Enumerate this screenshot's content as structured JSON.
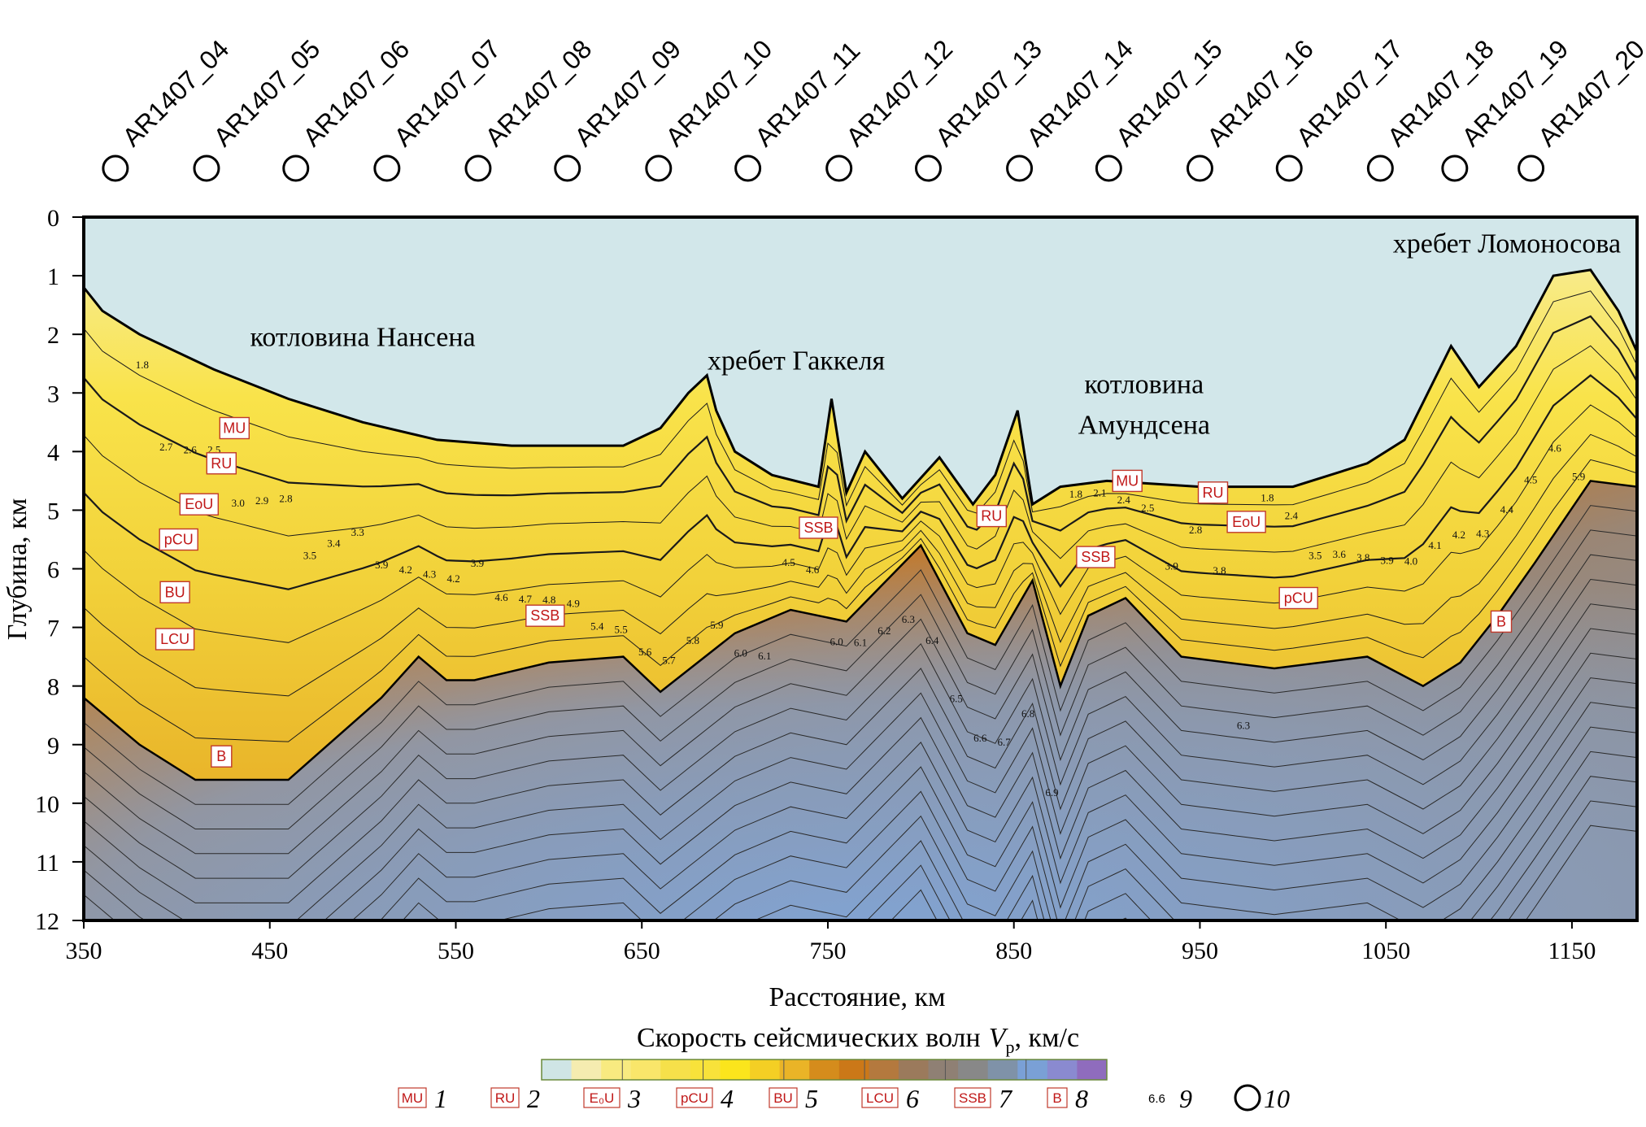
{
  "chart_data": {
    "type": "area",
    "title": "",
    "xlabel": "Расстояние, км",
    "ylabel": "Глубина, км",
    "xlim": [
      350,
      1185
    ],
    "ylim": [
      0,
      12
    ],
    "x_ticks": [
      "350",
      "450",
      "550",
      "650",
      "750",
      "850",
      "950",
      "1050",
      "1150"
    ],
    "y_ticks": [
      "0",
      "1",
      "2",
      "3",
      "4",
      "5",
      "6",
      "7",
      "8",
      "9",
      "10",
      "11",
      "12"
    ],
    "colorbar_title_prefix": "Скорость сейсмических волн",
    "colorbar_symbol": "V",
    "colorbar_sub": "p",
    "colorbar_unit": ", км/с",
    "colorbar_colors": [
      "#cfe5e5",
      "#f5ecb0",
      "#f8ea80",
      "#f9e66a",
      "#f6e04a",
      "#f8e23a",
      "#fbe51c",
      "#f4cf24",
      "#eab427",
      "#d58c1c",
      "#cb7818",
      "#b4793e",
      "#9b7a5c",
      "#8f8074",
      "#888888",
      "#7f92a8",
      "#7aa0d6",
      "#8a8ad0",
      "#8f6cbd"
    ],
    "regions": [
      {
        "label": "котловина Нансена",
        "x": 500,
        "y": 2.2
      },
      {
        "label": "хребет Гаккеля",
        "x": 733,
        "y": 2.6
      },
      {
        "label": "котловина",
        "x": 920,
        "y": 3.0
      },
      {
        "label": "Амундсена",
        "x": 920,
        "y": 3.7
      },
      {
        "label": "хребет Ломоносова",
        "x": 1115,
        "y": 0.6
      }
    ],
    "stations": [
      {
        "name": "AR1407_04",
        "x": 367
      },
      {
        "name": "AR1407_05",
        "x": 416
      },
      {
        "name": "AR1407_06",
        "x": 464
      },
      {
        "name": "AR1407_07",
        "x": 513
      },
      {
        "name": "AR1407_08",
        "x": 562
      },
      {
        "name": "AR1407_09",
        "x": 610
      },
      {
        "name": "AR1407_10",
        "x": 659
      },
      {
        "name": "AR1407_11",
        "x": 707
      },
      {
        "name": "AR1407_12",
        "x": 756
      },
      {
        "name": "AR1407_13",
        "x": 804
      },
      {
        "name": "AR1407_14",
        "x": 853
      },
      {
        "name": "AR1407_15",
        "x": 901
      },
      {
        "name": "AR1407_16",
        "x": 950
      },
      {
        "name": "AR1407_17",
        "x": 998
      },
      {
        "name": "AR1407_18",
        "x": 1047
      },
      {
        "name": "AR1407_19",
        "x": 1087
      },
      {
        "name": "AR1407_20",
        "x": 1128
      }
    ],
    "series": [
      {
        "name": "",
        "color": "#fbe51c",
        "points": [
          [
            350,
            1.2
          ],
          [
            360,
            1.6
          ],
          [
            380,
            2.0
          ],
          [
            420,
            2.6
          ],
          [
            460,
            3.1
          ],
          [
            500,
            3.5
          ],
          [
            540,
            3.8
          ],
          [
            580,
            3.9
          ],
          [
            640,
            3.9
          ],
          [
            660,
            3.6
          ],
          [
            675,
            3.0
          ],
          [
            685,
            2.7
          ],
          [
            690,
            3.3
          ],
          [
            700,
            4.0
          ],
          [
            720,
            4.4
          ],
          [
            745,
            4.6
          ],
          [
            752,
            3.1
          ],
          [
            760,
            4.7
          ],
          [
            770,
            4.0
          ],
          [
            790,
            4.8
          ],
          [
            810,
            4.1
          ],
          [
            828,
            4.9
          ],
          [
            840,
            4.4
          ],
          [
            852,
            3.3
          ],
          [
            860,
            4.9
          ],
          [
            875,
            4.6
          ],
          [
            900,
            4.5
          ],
          [
            950,
            4.6
          ],
          [
            1000,
            4.6
          ],
          [
            1040,
            4.2
          ],
          [
            1060,
            3.8
          ],
          [
            1085,
            2.2
          ],
          [
            1100,
            2.9
          ],
          [
            1120,
            2.2
          ],
          [
            1140,
            1.0
          ],
          [
            1160,
            0.9
          ],
          [
            1175,
            1.6
          ],
          [
            1185,
            2.3
          ]
        ]
      },
      {
        "name": "",
        "color": "#9b7a5c",
        "points": [
          [
            350,
            8.2
          ],
          [
            380,
            9.0
          ],
          [
            410,
            9.6
          ],
          [
            460,
            9.6
          ],
          [
            510,
            8.2
          ],
          [
            530,
            7.5
          ],
          [
            545,
            7.9
          ],
          [
            560,
            7.9
          ],
          [
            600,
            7.6
          ],
          [
            640,
            7.5
          ],
          [
            660,
            8.1
          ],
          [
            700,
            7.1
          ],
          [
            730,
            6.7
          ],
          [
            760,
            6.9
          ],
          [
            800,
            5.6
          ],
          [
            825,
            7.1
          ],
          [
            840,
            7.3
          ],
          [
            860,
            6.2
          ],
          [
            875,
            8.0
          ],
          [
            890,
            6.8
          ],
          [
            910,
            6.5
          ],
          [
            940,
            7.5
          ],
          [
            990,
            7.7
          ],
          [
            1040,
            7.5
          ],
          [
            1070,
            8.0
          ],
          [
            1090,
            7.6
          ],
          [
            1110,
            6.8
          ],
          [
            1130,
            5.9
          ],
          [
            1160,
            4.5
          ],
          [
            1185,
            4.6
          ]
        ]
      }
    ],
    "contour_labels": [
      "1.8",
      "2.7",
      "2.6",
      "2.5",
      "3.0",
      "2.9",
      "2.8",
      "3.5",
      "3.4",
      "3.3",
      "3.9",
      "4.2",
      "4.3",
      "4.2",
      "3.9",
      "4.6",
      "4.7",
      "4.8",
      "4.9",
      "5.4",
      "5.5",
      "5.6",
      "5.7",
      "5.8",
      "5.9",
      "6.0",
      "6.1",
      "4.5",
      "4.6",
      "6.0",
      "6.1",
      "6.2",
      "6.3",
      "6.4",
      "6.5",
      "6.6",
      "6.7",
      "6.8",
      "6.9",
      "1.8",
      "2.1",
      "2.4",
      "2.5",
      "3.9",
      "2.8",
      "3.8",
      "6.3",
      "1.8",
      "2.4",
      "3.5",
      "3.6",
      "3.8",
      "3.9",
      "4.0",
      "4.1",
      "4.2",
      "4.3",
      "4.4",
      "4.5",
      "4.6",
      "5.9"
    ],
    "horizons": [
      {
        "label": "MU",
        "x": 431,
        "y": 3.6
      },
      {
        "label": "RU",
        "x": 424,
        "y": 4.2
      },
      {
        "label": "EoU",
        "x": 412,
        "y": 4.9
      },
      {
        "label": "pCU",
        "x": 401,
        "y": 5.5
      },
      {
        "label": "BU",
        "x": 399,
        "y": 6.4
      },
      {
        "label": "LCU",
        "x": 399,
        "y": 7.2
      },
      {
        "label": "B",
        "x": 424,
        "y": 9.2
      },
      {
        "label": "SSB",
        "x": 598,
        "y": 6.8
      },
      {
        "label": "SSB",
        "x": 745,
        "y": 5.3
      },
      {
        "label": "RU",
        "x": 838,
        "y": 5.1
      },
      {
        "label": "MU",
        "x": 911,
        "y": 4.5
      },
      {
        "label": "RU",
        "x": 957,
        "y": 4.7
      },
      {
        "label": "SSB",
        "x": 894,
        "y": 5.8
      },
      {
        "label": "EoU",
        "x": 975,
        "y": 5.2
      },
      {
        "label": "pCU",
        "x": 1003,
        "y": 6.5
      },
      {
        "label": "B",
        "x": 1112,
        "y": 6.9
      }
    ],
    "legend": [
      {
        "abbr": "MU",
        "num": "1"
      },
      {
        "abbr": "RU",
        "num": "2"
      },
      {
        "abbr": "E₀U",
        "num": "3"
      },
      {
        "abbr": "pCU",
        "num": "4"
      },
      {
        "abbr": "BU",
        "num": "5"
      },
      {
        "abbr": "LCU",
        "num": "6"
      },
      {
        "abbr": "SSB",
        "num": "7"
      },
      {
        "abbr": "B",
        "num": "8"
      },
      {
        "abbr": "6.6",
        "num": "9"
      },
      {
        "abbr": "",
        "num": "10"
      }
    ]
  }
}
